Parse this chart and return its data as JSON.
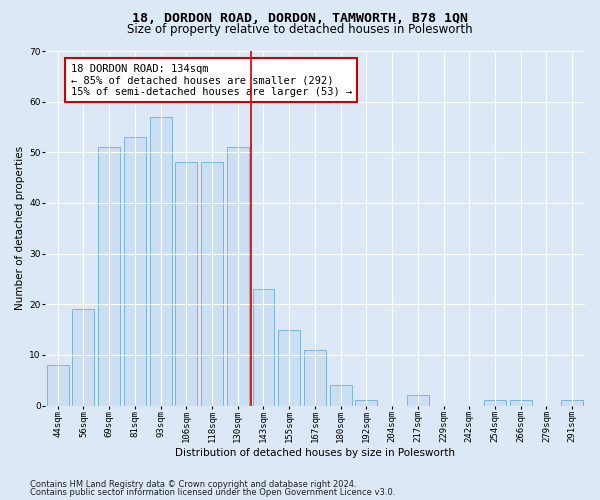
{
  "title": "18, DORDON ROAD, DORDON, TAMWORTH, B78 1QN",
  "subtitle": "Size of property relative to detached houses in Polesworth",
  "xlabel": "Distribution of detached houses by size in Polesworth",
  "ylabel": "Number of detached properties",
  "categories": [
    "44sqm",
    "56sqm",
    "69sqm",
    "81sqm",
    "93sqm",
    "106sqm",
    "118sqm",
    "130sqm",
    "143sqm",
    "155sqm",
    "167sqm",
    "180sqm",
    "192sqm",
    "204sqm",
    "217sqm",
    "229sqm",
    "242sqm",
    "254sqm",
    "266sqm",
    "279sqm",
    "291sqm"
  ],
  "values": [
    8,
    19,
    51,
    53,
    57,
    48,
    48,
    51,
    23,
    15,
    11,
    4,
    1,
    0,
    2,
    0,
    0,
    1,
    1,
    0,
    1
  ],
  "bar_color": "#ccdff2",
  "bar_edge_color": "#6aaed6",
  "vline_x_index": 7.5,
  "vline_color": "#cc0000",
  "annotation_text": "18 DORDON ROAD: 134sqm\n← 85% of detached houses are smaller (292)\n15% of semi-detached houses are larger (53) →",
  "annotation_box_color": "#ffffff",
  "annotation_box_edge": "#cc0000",
  "ylim": [
    0,
    70
  ],
  "yticks": [
    0,
    10,
    20,
    30,
    40,
    50,
    60,
    70
  ],
  "footnote1": "Contains HM Land Registry data © Crown copyright and database right 2024.",
  "footnote2": "Contains public sector information licensed under the Open Government Licence v3.0.",
  "background_color": "#dce8f5",
  "plot_bg_color": "#dce8f5",
  "grid_color": "#ffffff",
  "title_fontsize": 9.5,
  "subtitle_fontsize": 8.5,
  "axis_label_fontsize": 7.5,
  "tick_fontsize": 6.5,
  "annotation_fontsize": 7.5,
  "footnote_fontsize": 6.0,
  "bar_width": 0.85
}
